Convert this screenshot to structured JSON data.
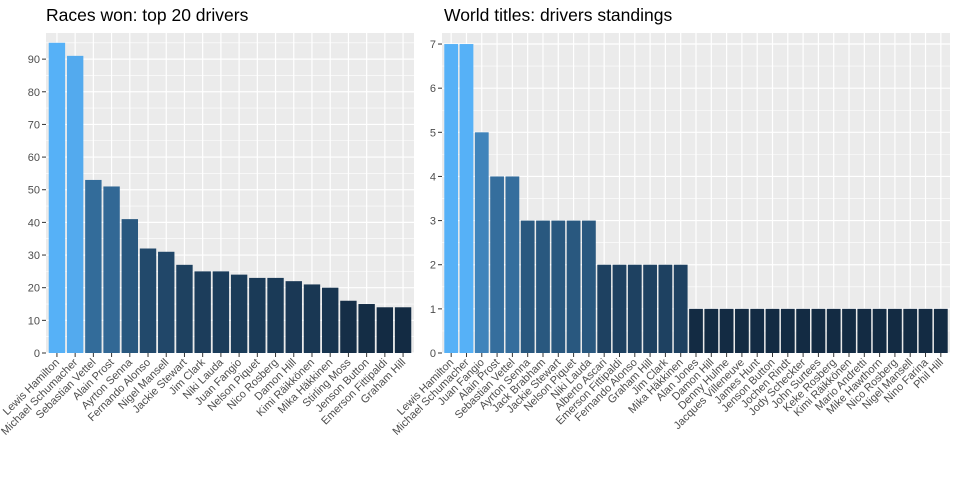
{
  "colors": {
    "panel_bg": "#ebebeb",
    "grid": "#ffffff",
    "bar_high": "#56b1f7",
    "bar_low": "#132b43",
    "tick_text": "#4d4d4d"
  },
  "chart_data": [
    {
      "type": "bar",
      "title": "Races won: top 20 drivers",
      "xlabel": "",
      "ylabel": "",
      "ylim": [
        0,
        98
      ],
      "yticks": [
        0,
        10,
        20,
        30,
        40,
        50,
        60,
        70,
        80,
        90
      ],
      "grid": true,
      "legend": "none",
      "categories": [
        "Lewis Hamilton",
        "Michael Schumacher",
        "Sebastian Vettel",
        "Alain Prost",
        "Ayrton Senna",
        "Fernando Alonso",
        "Nigel Mansell",
        "Jackie Stewart",
        "Jim Clark",
        "Niki Lauda",
        "Juan Fangio",
        "Nelson Piquet",
        "Nico Rosberg",
        "Damon Hill",
        "Kimi Räikkönen",
        "Mika Häkkinen",
        "Stirling Moss",
        "Jenson Button",
        "Emerson Fittipaldi",
        "Graham Hill"
      ],
      "values": [
        95,
        91,
        53,
        51,
        41,
        32,
        31,
        27,
        25,
        25,
        24,
        23,
        23,
        22,
        21,
        20,
        16,
        15,
        14,
        14
      ]
    },
    {
      "type": "bar",
      "title": "World titles: drivers standings",
      "xlabel": "",
      "ylabel": "",
      "ylim": [
        0,
        7.25
      ],
      "yticks": [
        0,
        1,
        2,
        3,
        4,
        5,
        6,
        7
      ],
      "grid": true,
      "legend": "none",
      "categories": [
        "Lewis Hamilton",
        "Michael Schumacher",
        "Juan Fangio",
        "Alain Prost",
        "Sebastian Vettel",
        "Ayrton Senna",
        "Jack Brabham",
        "Jackie Stewart",
        "Nelson Piquet",
        "Niki Lauda",
        "Alberto Ascari",
        "Emerson Fittipaldi",
        "Fernando Alonso",
        "Graham Hill",
        "Jim Clark",
        "Mika Häkkinen",
        "Alan Jones",
        "Damon Hill",
        "Denny Hulme",
        "Jacques Villeneuve",
        "James Hunt",
        "Jenson Button",
        "Jochen Rindt",
        "Jody Scheckter",
        "John Surtees",
        "Keke Rosberg",
        "Kimi Räikkönen",
        "Mario Andretti",
        "Mike Hawthorn",
        "Nico Rosberg",
        "Nigel Mansell",
        "Nino Farina",
        "Phil Hill"
      ],
      "values": [
        7,
        7,
        5,
        4,
        4,
        3,
        3,
        3,
        3,
        3,
        2,
        2,
        2,
        2,
        2,
        2,
        1,
        1,
        1,
        1,
        1,
        1,
        1,
        1,
        1,
        1,
        1,
        1,
        1,
        1,
        1,
        1,
        1
      ]
    }
  ]
}
